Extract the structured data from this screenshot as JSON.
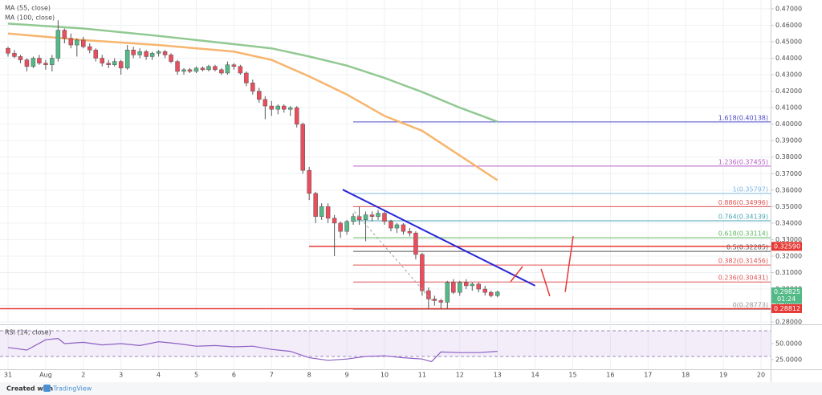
{
  "chart_data": {
    "type": "candlestick",
    "x": [
      0,
      0.17,
      0.33,
      0.5,
      0.67,
      0.83,
      1,
      1.17,
      1.33,
      1.5,
      1.67,
      1.83,
      2,
      2.17,
      2.33,
      2.5,
      2.67,
      2.83,
      3,
      3.17,
      3.33,
      3.5,
      3.67,
      3.83,
      4,
      4.17,
      4.33,
      4.5,
      4.67,
      4.83,
      5,
      5.17,
      5.33,
      5.5,
      5.67,
      5.83,
      6,
      6.17,
      6.33,
      6.5,
      6.67,
      6.83,
      7,
      7.17,
      7.33,
      7.5,
      7.67,
      7.83,
      8,
      8.17,
      8.33,
      8.5,
      8.67,
      8.83,
      9,
      9.17,
      9.33,
      9.5,
      9.67,
      9.83,
      10,
      10.17,
      10.33,
      10.5,
      10.67,
      10.83,
      11,
      11.17,
      11.33,
      11.5,
      11.67,
      11.83,
      12,
      12.17,
      12.33,
      12.5,
      12.67,
      12.83,
      13
    ],
    "open": [
      0.446,
      0.443,
      0.441,
      0.439,
      0.435,
      0.44,
      0.437,
      0.436,
      0.44,
      0.457,
      0.452,
      0.448,
      0.451,
      0.447,
      0.445,
      0.44,
      0.437,
      0.436,
      0.438,
      0.434,
      0.445,
      0.442,
      0.444,
      0.441,
      0.443,
      0.444,
      0.442,
      0.438,
      0.432,
      0.433,
      0.432,
      0.434,
      0.433,
      0.435,
      0.433,
      0.431,
      0.436,
      0.435,
      0.431,
      0.425,
      0.42,
      0.415,
      0.411,
      0.409,
      0.411,
      0.409,
      0.41,
      0.4,
      0.372,
      0.358,
      0.344,
      0.35,
      0.343,
      0.34,
      0.335,
      0.341,
      0.344,
      0.342,
      0.345,
      0.344,
      0.346,
      0.341,
      0.337,
      0.339,
      0.335,
      0.334,
      0.321,
      0.299,
      0.294,
      0.293,
      0.292,
      0.304,
      0.298,
      0.304,
      0.302,
      0.303,
      0.3,
      0.298,
      0.296
    ],
    "high": [
      0.447,
      0.445,
      0.442,
      0.44,
      0.441,
      0.442,
      0.439,
      0.442,
      0.463,
      0.458,
      0.455,
      0.452,
      0.453,
      0.449,
      0.446,
      0.442,
      0.439,
      0.44,
      0.439,
      0.448,
      0.447,
      0.446,
      0.445,
      0.444,
      0.445,
      0.445,
      0.443,
      0.439,
      0.434,
      0.434,
      0.435,
      0.435,
      0.436,
      0.436,
      0.434,
      0.438,
      0.437,
      0.436,
      0.432,
      0.427,
      0.422,
      0.417,
      0.414,
      0.412,
      0.412,
      0.411,
      0.411,
      0.401,
      0.374,
      0.359,
      0.352,
      0.352,
      0.345,
      0.341,
      0.342,
      0.346,
      0.35,
      0.347,
      0.347,
      0.348,
      0.347,
      0.342,
      0.34,
      0.34,
      0.337,
      0.335,
      0.322,
      0.301,
      0.296,
      0.294,
      0.305,
      0.306,
      0.305,
      0.306,
      0.304,
      0.304,
      0.302,
      0.299,
      0.299
    ],
    "low": [
      0.441,
      0.44,
      0.437,
      0.432,
      0.434,
      0.436,
      0.433,
      0.432,
      0.438,
      0.449,
      0.446,
      0.441,
      0.446,
      0.443,
      0.438,
      0.435,
      0.434,
      0.435,
      0.43,
      0.433,
      0.44,
      0.44,
      0.439,
      0.439,
      0.441,
      0.44,
      0.437,
      0.43,
      0.43,
      0.431,
      0.431,
      0.432,
      0.432,
      0.432,
      0.43,
      0.43,
      0.433,
      0.43,
      0.423,
      0.418,
      0.413,
      0.403,
      0.405,
      0.406,
      0.407,
      0.405,
      0.398,
      0.37,
      0.354,
      0.34,
      0.342,
      0.34,
      0.32,
      0.331,
      0.333,
      0.339,
      0.339,
      0.329,
      0.341,
      0.342,
      0.339,
      0.335,
      0.334,
      0.333,
      0.332,
      0.318,
      0.296,
      0.288,
      0.29,
      0.288,
      0.288,
      0.297,
      0.296,
      0.3,
      0.299,
      0.298,
      0.296,
      0.295,
      0.295
    ],
    "close": [
      0.443,
      0.441,
      0.439,
      0.435,
      0.44,
      0.437,
      0.436,
      0.44,
      0.457,
      0.452,
      0.448,
      0.451,
      0.447,
      0.445,
      0.44,
      0.437,
      0.436,
      0.438,
      0.434,
      0.445,
      0.442,
      0.444,
      0.441,
      0.443,
      0.444,
      0.442,
      0.438,
      0.432,
      0.433,
      0.432,
      0.434,
      0.433,
      0.435,
      0.433,
      0.431,
      0.436,
      0.435,
      0.431,
      0.425,
      0.42,
      0.415,
      0.411,
      0.409,
      0.411,
      0.409,
      0.41,
      0.4,
      0.372,
      0.358,
      0.344,
      0.35,
      0.343,
      0.34,
      0.335,
      0.341,
      0.344,
      0.342,
      0.345,
      0.344,
      0.346,
      0.341,
      0.337,
      0.339,
      0.335,
      0.334,
      0.321,
      0.299,
      0.294,
      0.293,
      0.292,
      0.304,
      0.298,
      0.304,
      0.302,
      0.303,
      0.3,
      0.298,
      0.296,
      0.29825
    ],
    "up_color": "#53b987",
    "down_color": "#eb4d5c",
    "xlim": [
      -0.213,
      20.256
    ],
    "xticks": [
      {
        "value": 0,
        "label": "31"
      },
      {
        "value": 1,
        "label": "Aug"
      },
      2,
      3,
      4,
      5,
      6,
      7,
      8,
      9,
      10,
      11,
      12,
      13,
      14,
      15,
      16,
      17,
      18,
      19,
      20
    ],
    "ylim": [
      0.2786,
      0.4753
    ],
    "yticks": [
      {
        "value": 0.28,
        "label": "0.28000"
      },
      {
        "value": 0.29,
        "label": "0.29000"
      },
      {
        "value": 0.3,
        "label": "0.30000"
      },
      {
        "value": 0.31,
        "label": "0.31000"
      },
      {
        "value": 0.32,
        "label": "0.32000"
      },
      {
        "value": 0.33,
        "label": "0.33000"
      },
      {
        "value": 0.34,
        "label": "0.34000"
      },
      {
        "value": 0.35,
        "label": "0.35000"
      },
      {
        "value": 0.36,
        "label": "0.36000"
      },
      {
        "value": 0.37,
        "label": "0.37000"
      },
      {
        "value": 0.38,
        "label": "0.38000"
      },
      {
        "value": 0.39,
        "label": "0.39000"
      },
      {
        "value": 0.4,
        "label": "0.40000"
      },
      {
        "value": 0.41,
        "label": "0.41000"
      },
      {
        "value": 0.42,
        "label": "0.42000"
      },
      {
        "value": 0.43,
        "label": "0.43000"
      },
      {
        "value": 0.44,
        "label": "0.44000"
      },
      {
        "value": 0.45,
        "label": "0.45000"
      },
      {
        "value": 0.46,
        "label": "0.46000"
      },
      {
        "value": 0.47,
        "label": "0.47000"
      }
    ],
    "grid": true,
    "moving_averages": [
      {
        "name": "MA (55, close)",
        "color": "#f7b56e",
        "x": [
          0,
          2,
          4,
          6,
          7,
          8,
          9,
          10,
          11,
          12,
          13
        ],
        "values": [
          0.455,
          0.451,
          0.448,
          0.444,
          0.439,
          0.429,
          0.418,
          0.405,
          0.396,
          0.381,
          0.366
        ]
      },
      {
        "name": "MA (100, close)",
        "color": "#92c992",
        "x": [
          0,
          2,
          4,
          6,
          7,
          8,
          9,
          10,
          11,
          12,
          13
        ],
        "values": [
          0.461,
          0.458,
          0.4535,
          0.4485,
          0.446,
          0.441,
          0.4355,
          0.428,
          0.4195,
          0.41,
          0.4015
        ]
      }
    ],
    "fib_levels": [
      {
        "label": "1.618(0.40138)",
        "value": 0.40138,
        "color": "#4a4ac8"
      },
      {
        "label": "1.236(0.37455)",
        "value": 0.37455,
        "color": "#b45cc8"
      },
      {
        "label": "1(0.35797)",
        "value": 0.35797,
        "color": "#7fb8e0"
      },
      {
        "label": "0.886(0.34996)",
        "value": 0.34996,
        "color": "#e05252"
      },
      {
        "label": "0.764(0.34139)",
        "value": 0.34139,
        "color": "#4aa5b5"
      },
      {
        "label": "0.618(0.33114)",
        "value": 0.33114,
        "color": "#5cb85c"
      },
      {
        "label": "0.5(0.32285)",
        "value": 0.32285,
        "color": "#555555"
      },
      {
        "label": "0.382(0.31456)",
        "value": 0.31456,
        "color": "#e05252"
      },
      {
        "label": "0.236(0.30431)",
        "value": 0.30431,
        "color": "#e05252"
      },
      {
        "label": "0(0.28773)",
        "value": 0.28773,
        "color": "#999999"
      }
    ],
    "horizontal_lines": [
      {
        "value": 0.3259,
        "label": "0.32590",
        "color": "#e53935"
      },
      {
        "value": 0.28812,
        "label": "0.28812",
        "color": "#e53935"
      }
    ],
    "last_price": {
      "value": 0.29825,
      "countdown": "01:24",
      "color": "#53b987"
    },
    "trendline": {
      "x": [
        8.89,
        14.0
      ],
      "values": [
        0.3603,
        0.302
      ],
      "color": "#2727d9"
    },
    "dashed_line": {
      "x": [
        9.2,
        11.3
      ],
      "values": [
        0.347,
        0.292
      ],
      "color": "#9e9e9e"
    },
    "projection": {
      "color": "#e53935",
      "segments": [
        {
          "x": [
            13.35,
            13.67
          ],
          "values": [
            0.3045,
            0.3137
          ]
        },
        {
          "x": [
            14.16,
            14.39
          ],
          "values": [
            0.3122,
            0.2957
          ]
        },
        {
          "x": [
            14.8,
            15.01
          ],
          "values": [
            0.2982,
            0.3321
          ]
        }
      ]
    },
    "rsi": {
      "name": "RSI (14, close)",
      "color": "#8e5fc2",
      "x": [
        0,
        0.5,
        1,
        1.33,
        1.5,
        2,
        2.5,
        3,
        3.5,
        4,
        4.5,
        5,
        5.5,
        6,
        6.5,
        7,
        7.5,
        8,
        8.5,
        9,
        9.5,
        10,
        10.5,
        11,
        11.25,
        11.5,
        12,
        12.5,
        13
      ],
      "values": [
        44,
        40,
        56,
        58,
        50,
        52,
        48,
        50,
        47,
        53,
        50,
        46,
        47,
        45,
        46,
        41,
        38,
        28,
        24,
        26,
        30,
        31,
        28,
        26,
        22,
        37,
        36,
        36,
        38
      ],
      "ylim": [
        10,
        80
      ],
      "band": [
        30,
        70
      ],
      "yticks": [
        {
          "value": 50,
          "label": "50.0000"
        },
        {
          "value": 25,
          "label": "25.0000"
        }
      ]
    }
  },
  "footer": {
    "created_with": "Created with",
    "brand": "TradingView"
  }
}
